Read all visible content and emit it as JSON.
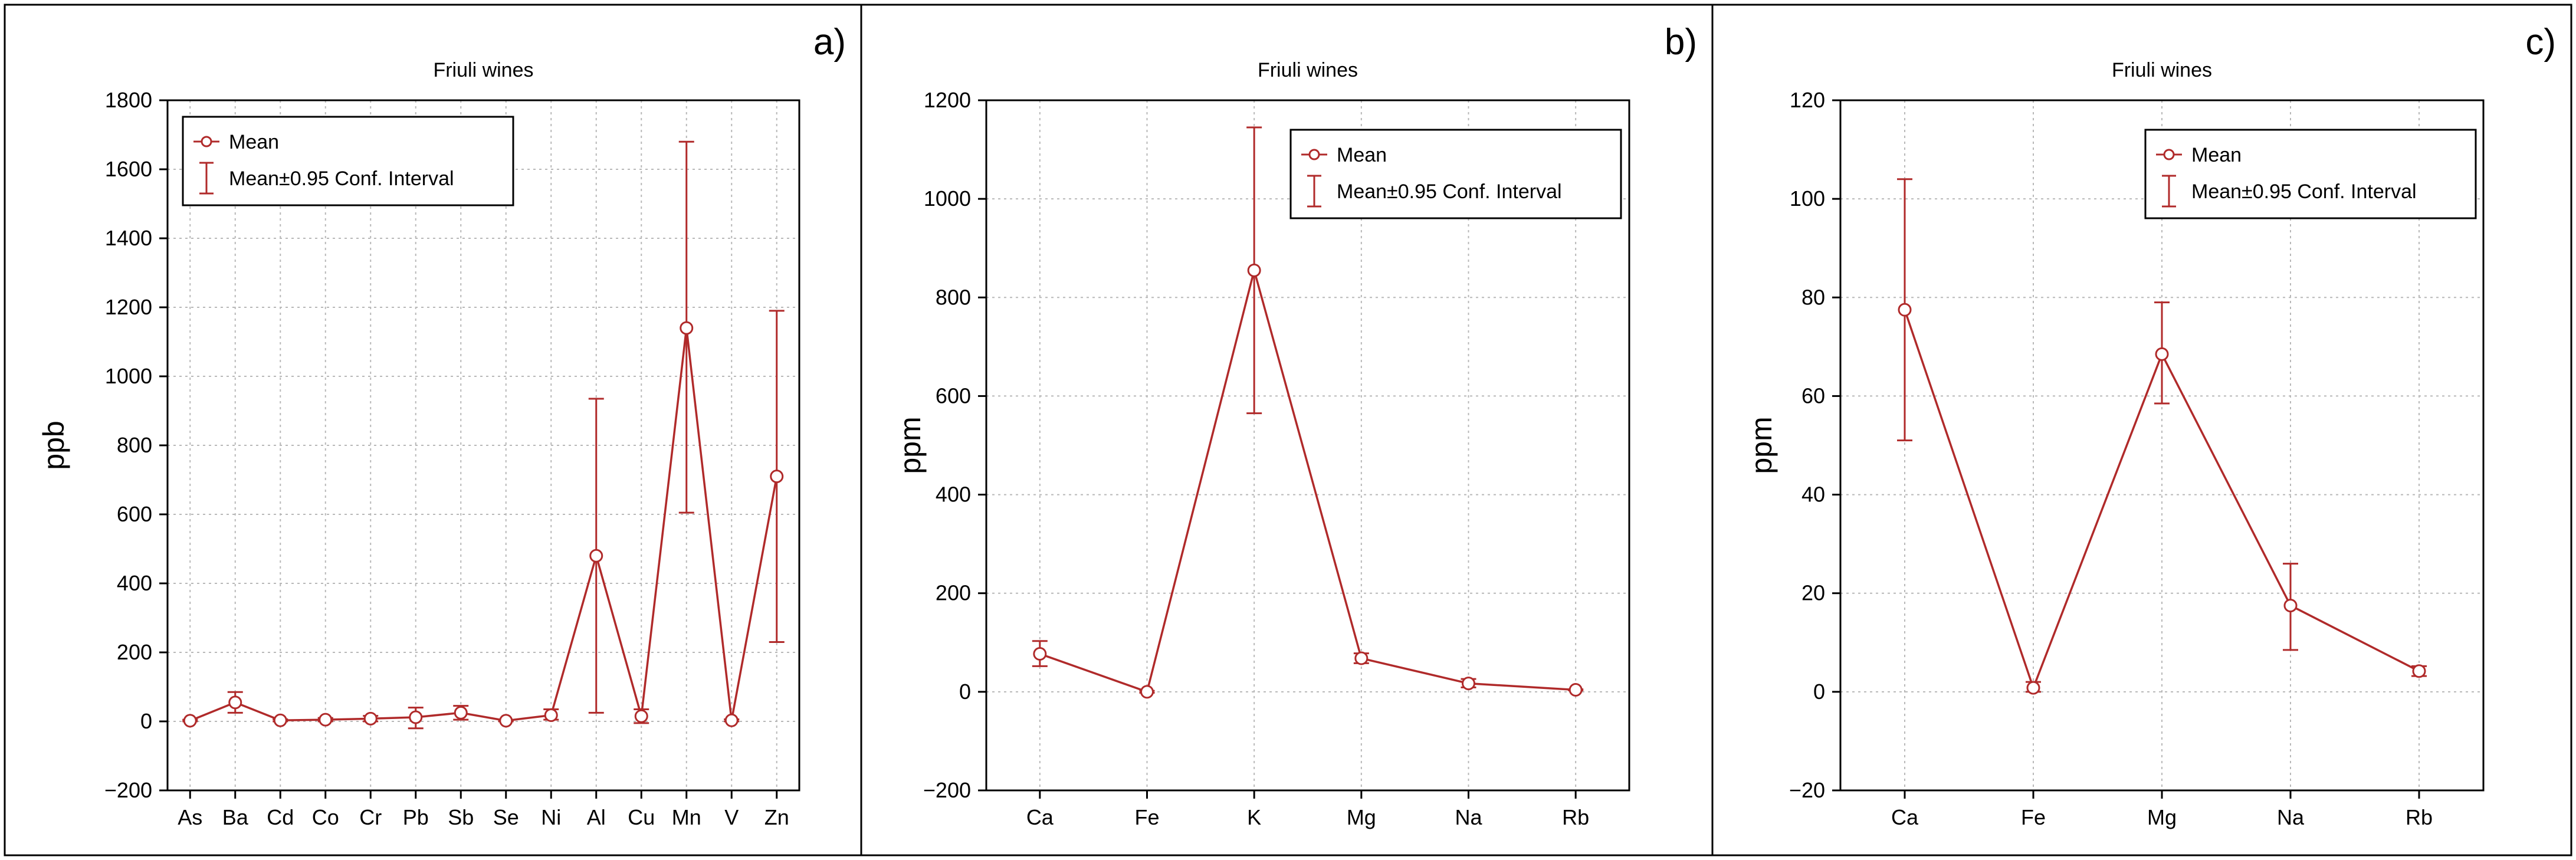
{
  "colors": {
    "series": "#b02a2a",
    "axis": "#000000",
    "grid": "#b8b8b8",
    "frame": "#000000"
  },
  "chart_data": [
    {
      "type": "line",
      "panel_label": "a)",
      "title": "Friuli wines",
      "xlabel": "",
      "ylabel": "ppb",
      "ylim": [
        -200,
        1800
      ],
      "yticks": [
        -200,
        0,
        200,
        400,
        600,
        800,
        1000,
        1200,
        1400,
        1600,
        1800
      ],
      "categories": [
        "As",
        "Ba",
        "Cd",
        "Co",
        "Cr",
        "Pb",
        "Sb",
        "Se",
        "Ni",
        "Al",
        "Cu",
        "Mn",
        "V",
        "Zn"
      ],
      "grid": true,
      "legend_position": "top-left",
      "legend": {
        "mean": "Mean",
        "ci": "Mean±0.95 Conf. Interval"
      },
      "series": [
        {
          "values": [
            2,
            55,
            3,
            5,
            8,
            12,
            25,
            2,
            18,
            480,
            15,
            1140,
            3,
            710
          ],
          "ci_low": [
            0,
            25,
            0,
            0,
            0,
            -20,
            5,
            0,
            5,
            25,
            -5,
            605,
            0,
            230
          ],
          "ci_high": [
            5,
            85,
            6,
            10,
            16,
            40,
            45,
            4,
            35,
            935,
            35,
            1680,
            6,
            1190
          ]
        }
      ]
    },
    {
      "type": "line",
      "panel_label": "b)",
      "title": "Friuli wines",
      "xlabel": "",
      "ylabel": "ppm",
      "ylim": [
        -200,
        1200
      ],
      "yticks": [
        -200,
        0,
        200,
        400,
        600,
        800,
        1000,
        1200
      ],
      "categories": [
        "Ca",
        "Fe",
        "K",
        "Mg",
        "Na",
        "Rb"
      ],
      "grid": true,
      "legend_position": "top-right",
      "legend": {
        "mean": "Mean",
        "ci": "Mean±0.95 Conf. Interval"
      },
      "series": [
        {
          "values": [
            77,
            0,
            855,
            68,
            17,
            4
          ],
          "ci_low": [
            52,
            -2,
            565,
            58,
            9,
            3
          ],
          "ci_high": [
            103,
            2,
            1145,
            78,
            26,
            5
          ]
        }
      ]
    },
    {
      "type": "line",
      "panel_label": "c)",
      "title": "Friuli wines",
      "xlabel": "",
      "ylabel": "ppm",
      "ylim": [
        -20,
        120
      ],
      "yticks": [
        -20,
        0,
        20,
        40,
        60,
        80,
        100,
        120
      ],
      "categories": [
        "Ca",
        "Fe",
        "Mg",
        "Na",
        "Rb"
      ],
      "grid": true,
      "legend_position": "top-right",
      "legend": {
        "mean": "Mean",
        "ci": "Mean±0.95 Conf. Interval"
      },
      "series": [
        {
          "values": [
            77.5,
            0.8,
            68.5,
            17.5,
            4.2
          ],
          "ci_low": [
            51,
            0,
            58.5,
            8.5,
            3.2
          ],
          "ci_high": [
            104,
            2,
            79,
            26,
            5.2
          ]
        }
      ]
    }
  ]
}
